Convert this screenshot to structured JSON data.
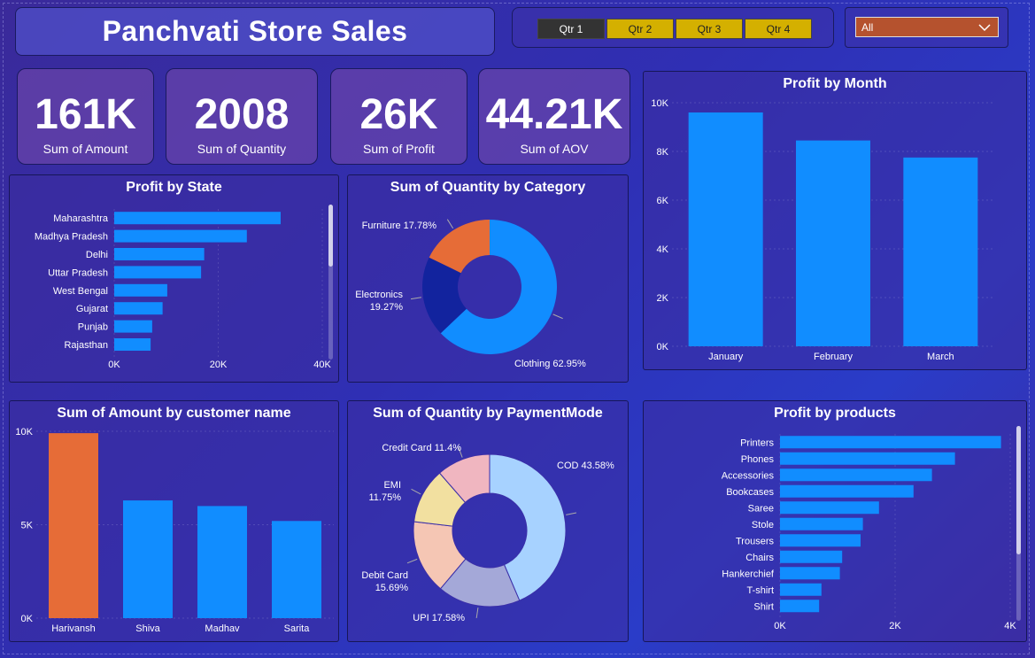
{
  "dashboard": {
    "title": "Panchvati Store Sales",
    "quarters": [
      "Qtr 1",
      "Qtr 2",
      "Qtr 3",
      "Qtr 4"
    ],
    "quarter_active_color": "#333333",
    "quarter_inactive_color": "#d4b000",
    "dropdown_value": "All",
    "dropdown_icon": "chevron-down-icon"
  },
  "kpis": [
    {
      "value": "161K",
      "label": "Sum of Amount"
    },
    {
      "value": "2008",
      "label": "Sum of Quantity"
    },
    {
      "value": "26K",
      "label": "Sum of Profit"
    },
    {
      "value": "44.21K",
      "label": "Sum of AOV"
    }
  ],
  "chart_data": [
    {
      "id": "profit_by_state",
      "type": "bar",
      "orientation": "horizontal",
      "title": "Profit by State",
      "categories": [
        "Maharashtra",
        "Madhya Pradesh",
        "Delhi",
        "Uttar Pradesh",
        "West Bengal",
        "Gujarat",
        "Punjab",
        "Rajasthan"
      ],
      "values": [
        32000,
        25500,
        17300,
        16700,
        10200,
        9300,
        7300,
        7000
      ],
      "xticks": [
        "0K",
        "20K",
        "40K"
      ],
      "xlim": [
        0,
        40000
      ],
      "color": "#118dff"
    },
    {
      "id": "qty_by_category",
      "type": "pie",
      "donut": true,
      "title": "Sum of Quantity by Category",
      "slices": [
        {
          "name": "Clothing",
          "value": 62.95,
          "label": "Clothing 62.95%",
          "color": "#118dff"
        },
        {
          "name": "Electronics",
          "value": 19.27,
          "label": "Electronics 19.27%",
          "color": "#12239e"
        },
        {
          "name": "Furniture",
          "value": 17.78,
          "label": "Furniture 17.78%",
          "color": "#e66c37"
        }
      ]
    },
    {
      "id": "profit_by_month",
      "type": "bar",
      "title": "Profit by Month",
      "categories": [
        "January",
        "February",
        "March"
      ],
      "values": [
        9600,
        8450,
        7750
      ],
      "yticks": [
        "0K",
        "2K",
        "4K",
        "6K",
        "8K",
        "10K"
      ],
      "ylim": [
        0,
        10000
      ],
      "color": "#118dff"
    },
    {
      "id": "amount_by_customer",
      "type": "bar",
      "title": "Sum of Amount by customer name",
      "categories": [
        "Harivansh",
        "Shiva",
        "Madhav",
        "Sarita"
      ],
      "values": [
        9900,
        6300,
        6000,
        5200
      ],
      "colors": [
        "#e66c37",
        "#118dff",
        "#118dff",
        "#118dff"
      ],
      "yticks": [
        "0K",
        "5K",
        "10K"
      ],
      "ylim": [
        0,
        10000
      ]
    },
    {
      "id": "qty_by_payment",
      "type": "pie",
      "donut": true,
      "title": "Sum of Quantity by PaymentMode",
      "slices": [
        {
          "name": "COD",
          "value": 43.58,
          "label": "COD 43.58%",
          "color": "#a7d2ff"
        },
        {
          "name": "UPI",
          "value": 17.58,
          "label": "UPI 17.58%",
          "color": "#a4a8d8"
        },
        {
          "name": "Debit Card",
          "value": 15.69,
          "label": "Debit Card 15.69%",
          "color": "#f5c6b4"
        },
        {
          "name": "EMI",
          "value": 11.75,
          "label": "EMI 11.75%",
          "color": "#f2e0a0"
        },
        {
          "name": "Credit Card",
          "value": 11.4,
          "label": "Credit Card 11.4%",
          "color": "#f0b6c0"
        }
      ]
    },
    {
      "id": "profit_by_products",
      "type": "bar",
      "orientation": "horizontal",
      "title": "Profit by products",
      "categories": [
        "Printers",
        "Phones",
        "Accessories",
        "Bookcases",
        "Saree",
        "Stole",
        "Trousers",
        "Chairs",
        "Hankerchief",
        "T-shirt",
        "Shirt"
      ],
      "values": [
        4800,
        3800,
        3300,
        2900,
        2150,
        1800,
        1750,
        1350,
        1300,
        900,
        850
      ],
      "xticks": [
        "0K",
        "2K",
        "4K"
      ],
      "xlim": [
        0,
        5000
      ],
      "color": "#118dff"
    }
  ]
}
